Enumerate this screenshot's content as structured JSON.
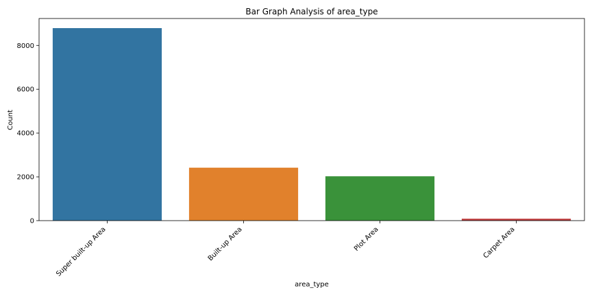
{
  "chart_data": {
    "type": "bar",
    "title": "Bar Graph Analysis of area_type",
    "xlabel": "area_type",
    "ylabel": "Count",
    "categories": [
      "Super built-up  Area",
      "Built-up  Area",
      "Plot  Area",
      "Carpet  Area"
    ],
    "values": [
      8790,
      2418,
      2025,
      87
    ],
    "colors": [
      "#3274a1",
      "#e1812c",
      "#3a923a",
      "#c03d3e"
    ],
    "ylim": [
      0,
      9229
    ],
    "yticks": [
      0,
      2000,
      4000,
      6000,
      8000
    ],
    "grid": false,
    "legend": "none"
  }
}
